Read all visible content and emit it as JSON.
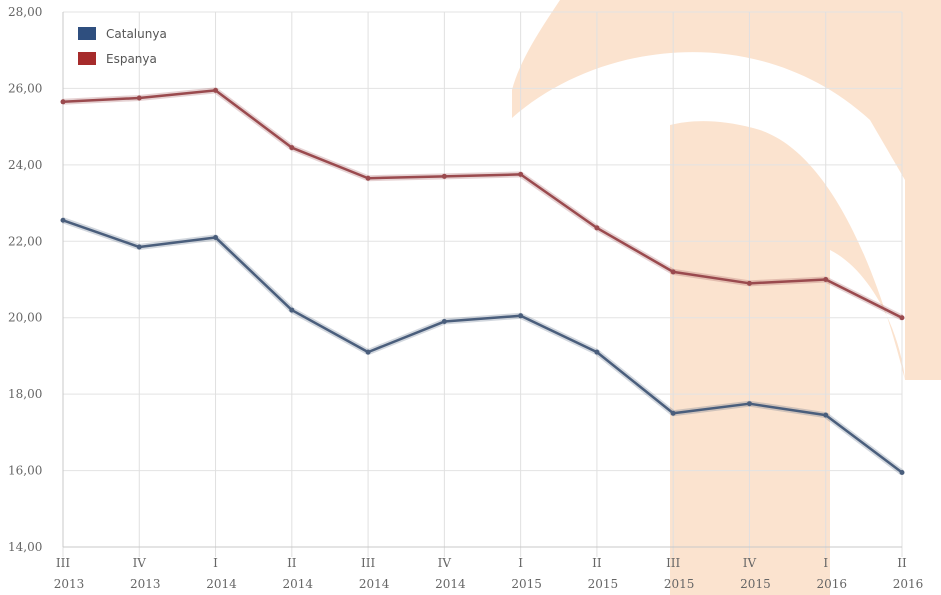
{
  "chart_data": {
    "type": "line",
    "title": "",
    "xlabel": "",
    "ylabel": "",
    "categories": [
      [
        "III",
        "2013"
      ],
      [
        "IV",
        "2013"
      ],
      [
        "I",
        "2014"
      ],
      [
        "II",
        "2014"
      ],
      [
        "III",
        "2014"
      ],
      [
        "IV",
        "2014"
      ],
      [
        "I",
        "2015"
      ],
      [
        "II",
        "2015"
      ],
      [
        "III",
        "2015"
      ],
      [
        "IV",
        "2015"
      ],
      [
        "I",
        "2016"
      ],
      [
        "II",
        "2016"
      ]
    ],
    "ylim": [
      14,
      28
    ],
    "yticks": [
      "14,00",
      "16,00",
      "18,00",
      "20,00",
      "22,00",
      "24,00",
      "26,00",
      "28,00"
    ],
    "grid": true,
    "legend_position": "top-left",
    "series": [
      {
        "name": "Catalunya",
        "color": "#4a5e7c",
        "swatch_color": "#2f4f7f",
        "values": [
          22.55,
          21.85,
          22.1,
          20.2,
          19.1,
          19.9,
          20.05,
          19.1,
          17.5,
          17.75,
          17.45,
          15.95
        ]
      },
      {
        "name": "Espanya",
        "color": "#9a4a4e",
        "swatch_color": "#a62b2b",
        "values": [
          25.65,
          25.75,
          25.95,
          24.45,
          23.65,
          23.7,
          23.75,
          22.35,
          21.2,
          20.9,
          21.0,
          20.0
        ]
      }
    ]
  },
  "watermark": {
    "color": "#fbe3cf"
  }
}
